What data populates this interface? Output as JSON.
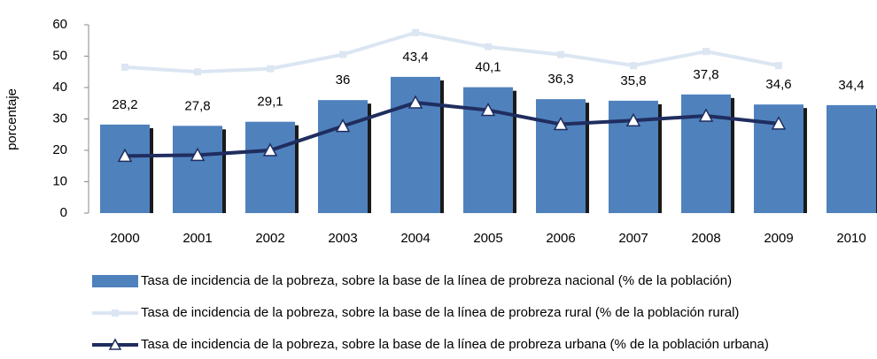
{
  "chart_data": {
    "type": "bar_line",
    "y_label": "porcentaje",
    "categories": [
      "2000",
      "2001",
      "2002",
      "2003",
      "2004",
      "2005",
      "2006",
      "2007",
      "2008",
      "2009",
      "2010"
    ],
    "ylim": [
      0,
      60
    ],
    "yticks": [
      0,
      10,
      20,
      30,
      40,
      50,
      60
    ],
    "series": [
      {
        "name": "Tasa de incidencia de la pobreza, sobre la base de la línea de probreza nacional (% de la población)",
        "type": "bar",
        "color": "#4f81bd",
        "values": [
          28.2,
          27.8,
          29.1,
          36,
          43.4,
          40.1,
          36.3,
          35.8,
          37.8,
          34.6,
          34.4
        ],
        "value_labels": [
          "28,2",
          "27,8",
          "29,1",
          "36",
          "43,4",
          "40,1",
          "36,3",
          "35,8",
          "37,8",
          "34,6",
          "34,4"
        ]
      },
      {
        "name": "Tasa de incidencia de la pobreza, sobre la base de la línea de probreza rural (% de la población rural)",
        "type": "line",
        "color": "#dce6f2",
        "marker": "square",
        "values": [
          46.5,
          45,
          46,
          50.5,
          57.5,
          53,
          50.5,
          47,
          51.5,
          47,
          null
        ]
      },
      {
        "name": "Tasa de incidencia de la pobreza, sobre la base de la línea de probreza urbana (% de la población urbana)",
        "type": "line",
        "color": "#1f2d5f",
        "marker": "triangle",
        "values": [
          18.2,
          18.5,
          20,
          27.7,
          35.2,
          32.8,
          28.3,
          29.5,
          31,
          28.5,
          null
        ]
      }
    ]
  }
}
